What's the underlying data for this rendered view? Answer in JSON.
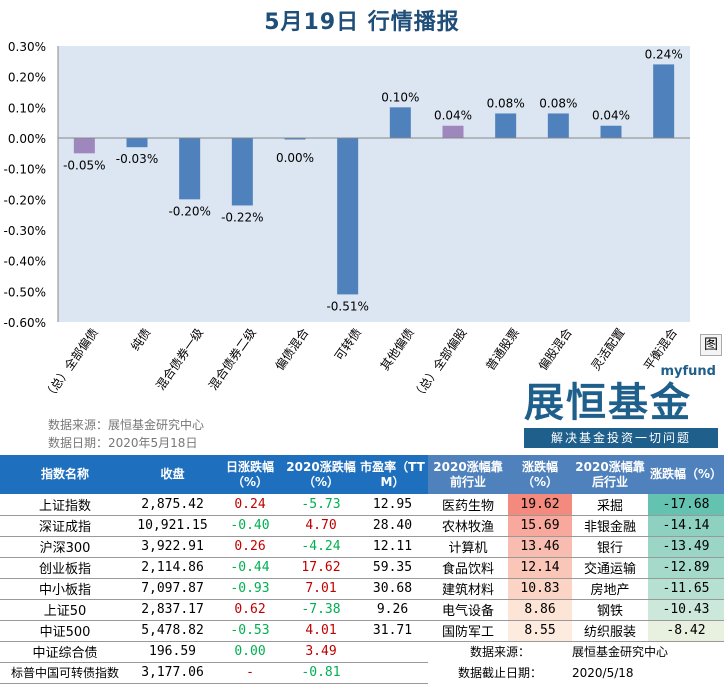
{
  "chart_data": {
    "type": "bar",
    "title": "5月19日  行情播报",
    "categories": [
      "（总）全部偏债",
      "纯债",
      "混合债券一级",
      "混合债券二级",
      "偏债混合",
      "可转债",
      "其他偏债",
      "（总）全部偏股",
      "普通股票",
      "偏股混合",
      "灵活配置",
      "平衡混合"
    ],
    "values": [
      -0.05,
      -0.03,
      -0.2,
      -0.22,
      0.0,
      -0.51,
      0.1,
      0.04,
      0.08,
      0.08,
      0.04,
      0.24
    ],
    "data_labels": [
      "-0.05%",
      "-0.03%",
      "-0.20%",
      "-0.22%",
      "0.00%",
      "-0.51%",
      "0.10%",
      "0.04%",
      "0.08%",
      "0.08%",
      "0.04%",
      "0.24%"
    ],
    "ylim": [
      -0.6,
      0.3
    ],
    "yticks": [
      "0.30%",
      "0.20%",
      "0.10%",
      "0.00%",
      "-0.10%",
      "-0.20%",
      "-0.30%",
      "-0.40%",
      "-0.50%",
      "-0.60%"
    ],
    "colors": {
      "default": "#4f81bd",
      "summary": "#9e87bd",
      "plot_bg": "#dce6f2"
    },
    "summary_indices": [
      0,
      7
    ],
    "grid": false,
    "legend": "none"
  },
  "source": {
    "line1": "数据来源：展恒基金研究中心",
    "line2": "数据日期：2020年5月18日"
  },
  "logo": {
    "top": "myfund",
    "name": "展恒基金",
    "slogan": "解决基金投资一切问题"
  },
  "fig_button": "图",
  "index_table": {
    "headers": [
      "指数名称",
      "收盘",
      "日涨跌幅（%）",
      "2020涨跌幅（%）",
      "市盈率（TTM）"
    ],
    "rows": [
      [
        "上证指数",
        "2,875.42",
        "0.24",
        "-5.73",
        "12.95"
      ],
      [
        "深证成指",
        "10,921.15",
        "-0.40",
        "4.70",
        "28.40"
      ],
      [
        "沪深300",
        "3,922.91",
        "0.26",
        "-4.24",
        "12.11"
      ],
      [
        "创业板指",
        "2,114.86",
        "-0.44",
        "17.62",
        "59.35"
      ],
      [
        "中小板指",
        "7,097.87",
        "-0.93",
        "7.01",
        "30.68"
      ],
      [
        "上证50",
        "2,837.17",
        "0.62",
        "-7.38",
        "9.26"
      ],
      [
        "中证500",
        "5,478.82",
        "-0.53",
        "4.01",
        "31.71"
      ],
      [
        "中证综合债",
        "196.59",
        "0.00",
        "3.49",
        ""
      ],
      [
        "标普中国可转债指数",
        "3,177.06",
        "-",
        "-0.81",
        ""
      ]
    ]
  },
  "industry_table": {
    "headers": [
      "2020涨幅靠前行业",
      "涨跌幅（%）",
      "2020涨幅靠后行业",
      "涨跌幅（%）"
    ],
    "rows": [
      [
        "医药生物",
        "19.62",
        "采掘",
        "-17.68"
      ],
      [
        "农林牧渔",
        "15.69",
        "非银金融",
        "-14.14"
      ],
      [
        "计算机",
        "13.46",
        "银行",
        "-13.49"
      ],
      [
        "食品饮料",
        "12.14",
        "交通运输",
        "-12.89"
      ],
      [
        "建筑材料",
        "10.83",
        "房地产",
        "-11.65"
      ],
      [
        "电气设备",
        "8.86",
        "钢铁",
        "-10.43"
      ],
      [
        "国防军工",
        "8.55",
        "纺织服装",
        "-8.42"
      ]
    ],
    "source_label": "数据来源：",
    "source_value": "展恒基金研究中心",
    "date_label": "数据截止日期：",
    "date_value": "2020/5/18"
  }
}
